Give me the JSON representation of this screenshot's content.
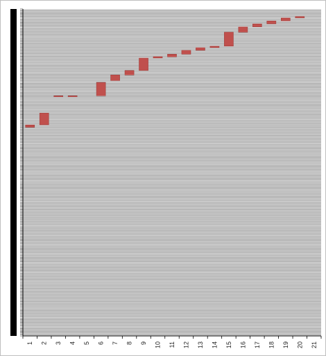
{
  "chart_data": {
    "type": "bar",
    "subtype": "floating-range",
    "categories": [
      "1",
      "2",
      "3",
      "4",
      "5",
      "6",
      "7",
      "8",
      "9",
      "10",
      "11",
      "12",
      "13",
      "14",
      "15",
      "16",
      "17",
      "18",
      "19",
      "20",
      "21"
    ],
    "series": [
      {
        "ranges": [
          [
            0.702,
            0.71
          ],
          [
            0.71,
            0.75
          ],
          [
            0.805,
            0.808
          ],
          [
            0.806,
            0.808
          ],
          null,
          [
            0.808,
            0.853
          ],
          [
            0.859,
            0.878
          ],
          [
            0.878,
            0.893
          ],
          [
            0.893,
            0.935
          ],
          [
            0.935,
            0.94
          ],
          [
            0.939,
            0.948
          ],
          [
            0.948,
            0.961
          ],
          [
            0.961,
            0.97
          ],
          [
            0.97,
            0.975
          ],
          [
            0.975,
            1.022
          ],
          [
            1.022,
            1.04
          ],
          [
            1.04,
            1.05
          ],
          [
            1.05,
            1.06
          ],
          [
            1.06,
            1.07
          ],
          [
            1.07,
            1.075
          ],
          null
        ]
      }
    ],
    "ylim": [
      0,
      1.1
    ],
    "ytick_step": 0.005,
    "grid": true,
    "legend": "none",
    "colors": {
      "bar": "#c0504d",
      "bar_edge": "#9b3a37",
      "plot_background": "#d9d9d9",
      "gridline": "#808080",
      "axis": "#000000"
    }
  }
}
